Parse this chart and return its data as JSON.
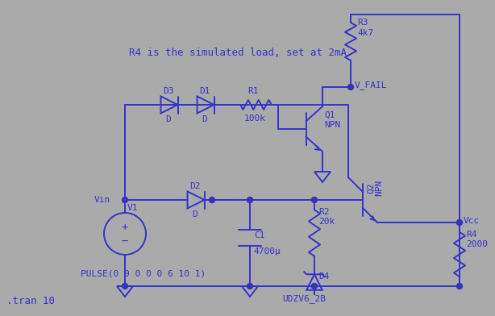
{
  "bg_color": "#aaaaaa",
  "line_color": "#3333cc",
  "text_color": "#3333cc",
  "dot_color": "#3333bb",
  "title_text": "R4 is the simulated load, set at 2mA",
  "bottom_text": ".tran 10",
  "pulse_text": "PULSE(0 9 0 0 0 6 10 1)"
}
